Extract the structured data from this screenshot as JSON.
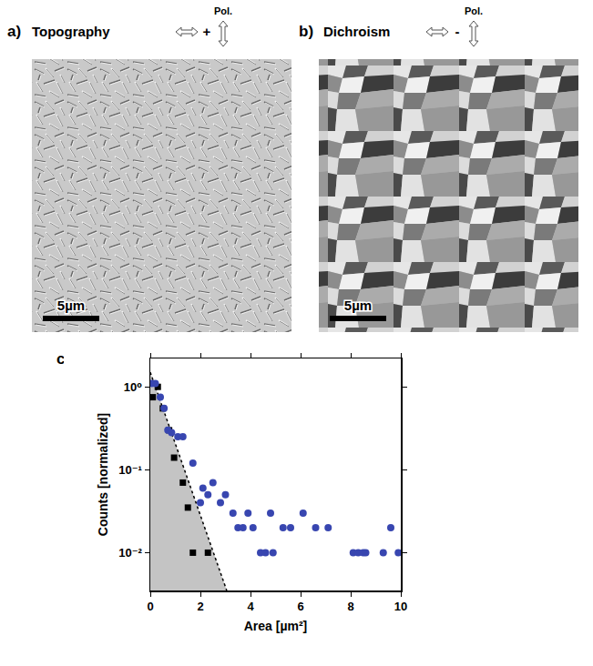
{
  "panels": [
    {
      "label": "a)",
      "title": "Topography",
      "polarizer": "Pol.",
      "sign": "+",
      "scale_bar": "5µm"
    },
    {
      "label": "b)",
      "title": "Dichroism",
      "polarizer": "Pol.",
      "sign": "-",
      "scale_bar": "5µm"
    }
  ],
  "chart_data": {
    "label": "c)",
    "type": "scatter",
    "x_label": "Area [µm²]",
    "y_label": "Counts [normalized]",
    "log": "y",
    "grid": false,
    "xlim": [
      0,
      10
    ],
    "xticks": [
      0,
      2,
      4,
      6,
      8,
      10
    ],
    "ylim": [
      0.0035,
      2.2
    ],
    "yticks": [
      {
        "value": 0.01,
        "label": "10⁻²"
      },
      {
        "value": 0.1,
        "label": "10⁻¹"
      },
      {
        "value": 1,
        "label": "10⁰"
      }
    ],
    "series": [
      {
        "type": "area",
        "color": "#c4c4c4",
        "line_style": "dotted",
        "x": [
          0,
          3.05
        ],
        "values": [
          1.5,
          0.0035
        ]
      },
      {
        "type": "scatter",
        "color": "#000000",
        "marker": "square",
        "x": [
          0.1,
          0.3,
          0.5,
          0.75,
          0.95,
          1.3,
          1.5,
          1.7,
          2.3
        ],
        "values": [
          0.75,
          1.0,
          0.55,
          0.3,
          0.14,
          0.07,
          0.035,
          0.01,
          0.01
        ]
      },
      {
        "type": "scatter",
        "color": "#3846b0",
        "marker": "circle",
        "x": [
          0.05,
          0.2,
          0.4,
          0.55,
          0.7,
          0.85,
          1.1,
          1.3,
          1.7,
          2.0,
          2.1,
          2.3,
          2.5,
          2.8,
          3.0,
          3.3,
          3.5,
          3.7,
          3.9,
          4.1,
          4.4,
          4.6,
          4.8,
          4.9,
          5.3,
          5.6,
          6.1,
          6.6,
          7.1,
          8.1,
          8.3,
          8.5,
          8.6,
          9.3,
          9.6,
          9.9
        ],
        "values": [
          1.1,
          1.1,
          0.75,
          0.55,
          0.3,
          0.28,
          0.25,
          0.25,
          0.12,
          0.04,
          0.06,
          0.05,
          0.07,
          0.04,
          0.05,
          0.03,
          0.02,
          0.02,
          0.03,
          0.02,
          0.01,
          0.01,
          0.03,
          0.01,
          0.02,
          0.02,
          0.03,
          0.02,
          0.02,
          0.01,
          0.01,
          0.01,
          0.01,
          0.01,
          0.02,
          0.01
        ]
      }
    ]
  }
}
